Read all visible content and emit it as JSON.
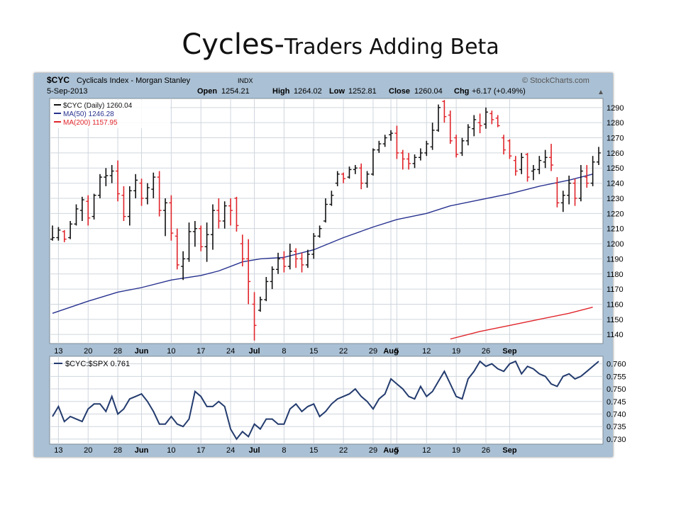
{
  "slide": {
    "title_main": "Cycles-",
    "title_rest": "Traders Adding Beta"
  },
  "header": {
    "symbol": "$CYC",
    "name": "Cyclicals Index - Morgan Stanley",
    "exchange": "INDX",
    "date": "5-Sep-2013",
    "watermark": "© StockCharts.com",
    "open_label": "Open",
    "open": "1254.21",
    "high_label": "High",
    "high": "1264.02",
    "low_label": "Low",
    "low": "1252.81",
    "close_label": "Close",
    "close": "1260.04",
    "chg_label": "Chg",
    "chg": "+6.17 (+0.49%)",
    "chg_arrow": "▲"
  },
  "colors": {
    "up": "#111111",
    "down": "#e0252b",
    "ma50": "#27318f",
    "ma200": "#e0252b",
    "ratio": "#233b6e",
    "grid": "#cfd6de",
    "panel_bg": "#aac0d4"
  },
  "chart_data": [
    {
      "type": "ohlc",
      "legend": [
        "$CYC (Daily) 1260.04",
        "MA(50) 1246.28",
        "MA(200) 1157.95"
      ],
      "y_ticks": [
        1290,
        1280,
        1270,
        1260,
        1250,
        1240,
        1230,
        1220,
        1210,
        1200,
        1190,
        1180,
        1170,
        1160,
        1150,
        1140
      ],
      "ylim": [
        1134,
        1296
      ],
      "x_tick_labels": [
        "13",
        "20",
        "28",
        "Jun",
        "10",
        "17",
        "24",
        "Jul",
        "8",
        "15",
        "22",
        "29",
        "Aug",
        "5",
        "12",
        "19",
        "26",
        "Sep"
      ],
      "x_tick_index": [
        1,
        6,
        11,
        15,
        20,
        25,
        30,
        34,
        39,
        44,
        49,
        54,
        57,
        58,
        63,
        68,
        73,
        77
      ],
      "bars": [
        [
          1203,
          1212,
          1202,
          1204
        ],
        [
          1204,
          1211,
          1202,
          1209
        ],
        [
          1208,
          1209,
          1201,
          1203
        ],
        [
          1204,
          1215,
          1203,
          1213
        ],
        [
          1213,
          1226,
          1212,
          1223
        ],
        [
          1222,
          1231,
          1215,
          1229
        ],
        [
          1228,
          1232,
          1212,
          1217
        ],
        [
          1218,
          1233,
          1216,
          1232
        ],
        [
          1232,
          1246,
          1230,
          1244
        ],
        [
          1244,
          1250,
          1238,
          1245
        ],
        [
          1245,
          1252,
          1240,
          1248
        ],
        [
          1248,
          1255,
          1228,
          1233
        ],
        [
          1232,
          1238,
          1215,
          1218
        ],
        [
          1218,
          1238,
          1212,
          1235
        ],
        [
          1235,
          1246,
          1230,
          1242
        ],
        [
          1240,
          1243,
          1225,
          1230
        ],
        [
          1230,
          1240,
          1226,
          1237
        ],
        [
          1236,
          1247,
          1230,
          1244
        ],
        [
          1244,
          1248,
          1218,
          1222
        ],
        [
          1222,
          1230,
          1205,
          1227
        ],
        [
          1227,
          1232,
          1202,
          1207
        ],
        [
          1205,
          1210,
          1183,
          1186
        ],
        [
          1185,
          1195,
          1176,
          1190
        ],
        [
          1190,
          1214,
          1188,
          1208
        ],
        [
          1208,
          1215,
          1198,
          1210
        ],
        [
          1210,
          1212,
          1195,
          1198
        ],
        [
          1198,
          1214,
          1188,
          1206
        ],
        [
          1206,
          1226,
          1196,
          1222
        ],
        [
          1222,
          1230,
          1210,
          1215
        ],
        [
          1215,
          1228,
          1210,
          1225
        ],
        [
          1225,
          1230,
          1212,
          1222
        ],
        [
          1230,
          1231,
          1208,
          1212
        ],
        [
          1200,
          1206,
          1185,
          1190
        ],
        [
          1190,
          1203,
          1160,
          1175
        ],
        [
          1160,
          1168,
          1136,
          1146
        ],
        [
          1156,
          1165,
          1155,
          1163
        ],
        [
          1163,
          1178,
          1162,
          1175
        ],
        [
          1175,
          1185,
          1170,
          1183
        ],
        [
          1183,
          1194,
          1180,
          1190
        ],
        [
          1190,
          1195,
          1181,
          1185
        ],
        [
          1185,
          1200,
          1183,
          1195
        ],
        [
          1195,
          1197,
          1184,
          1190
        ],
        [
          1190,
          1194,
          1181,
          1186
        ],
        [
          1186,
          1196,
          1184,
          1193
        ],
        [
          1193,
          1207,
          1190,
          1205
        ],
        [
          1205,
          1212,
          1204,
          1210
        ],
        [
          1215,
          1230,
          1214,
          1226
        ],
        [
          1226,
          1235,
          1225,
          1232
        ],
        [
          1240,
          1248,
          1238,
          1246
        ],
        [
          1246,
          1247,
          1240,
          1243
        ],
        [
          1244,
          1251,
          1243,
          1249
        ],
        [
          1249,
          1252,
          1246,
          1250
        ],
        [
          1250,
          1253,
          1236,
          1240
        ],
        [
          1240,
          1248,
          1237,
          1246
        ],
        [
          1246,
          1263,
          1245,
          1262
        ],
        [
          1262,
          1268,
          1260,
          1266
        ],
        [
          1266,
          1272,
          1264,
          1270
        ],
        [
          1272,
          1275,
          1268,
          1273
        ],
        [
          1273,
          1278,
          1256,
          1260
        ],
        [
          1260,
          1262,
          1249,
          1256
        ],
        [
          1256,
          1260,
          1249,
          1253
        ],
        [
          1253,
          1259,
          1250,
          1257
        ],
        [
          1257,
          1263,
          1255,
          1260
        ],
        [
          1260,
          1268,
          1258,
          1266
        ],
        [
          1264,
          1280,
          1262,
          1275
        ],
        [
          1275,
          1292,
          1274,
          1290
        ],
        [
          1294,
          1295,
          1280,
          1284
        ],
        [
          1285,
          1288,
          1266,
          1268
        ],
        [
          1270,
          1272,
          1257,
          1259
        ],
        [
          1260,
          1270,
          1258,
          1268
        ],
        [
          1268,
          1279,
          1265,
          1277
        ],
        [
          1276,
          1285,
          1271,
          1282
        ],
        [
          1280,
          1286,
          1273,
          1278
        ],
        [
          1279,
          1290,
          1276,
          1287
        ],
        [
          1286,
          1288,
          1279,
          1282
        ],
        [
          1283,
          1285,
          1277,
          1278
        ],
        [
          1270,
          1272,
          1259,
          1262
        ],
        [
          1268,
          1269,
          1256,
          1258
        ],
        [
          1255,
          1258,
          1245,
          1248
        ],
        [
          1249,
          1260,
          1246,
          1257
        ],
        [
          1259,
          1260,
          1241,
          1244
        ],
        [
          1248,
          1252,
          1242,
          1249
        ],
        [
          1249,
          1258,
          1246,
          1255
        ],
        [
          1254,
          1262,
          1250,
          1257
        ],
        [
          1257,
          1266,
          1248,
          1252
        ],
        [
          1240,
          1244,
          1224,
          1227
        ],
        [
          1227,
          1235,
          1221,
          1232
        ],
        [
          1232,
          1245,
          1226,
          1240
        ],
        [
          1240,
          1243,
          1225,
          1230
        ],
        [
          1230,
          1252,
          1228,
          1248
        ],
        [
          1244,
          1252,
          1237,
          1240
        ],
        [
          1240,
          1258,
          1238,
          1254
        ],
        [
          1254,
          1264,
          1252,
          1260
        ]
      ],
      "ma50": [
        [
          0,
          1154
        ],
        [
          6,
          1162
        ],
        [
          11,
          1168
        ],
        [
          15,
          1171
        ],
        [
          20,
          1176
        ],
        [
          25,
          1179
        ],
        [
          28,
          1182
        ],
        [
          32,
          1188
        ],
        [
          35,
          1190
        ],
        [
          39,
          1191
        ],
        [
          44,
          1196
        ],
        [
          49,
          1204
        ],
        [
          54,
          1211
        ],
        [
          58,
          1216
        ],
        [
          63,
          1220
        ],
        [
          67,
          1225
        ],
        [
          72,
          1229
        ],
        [
          77,
          1233
        ],
        [
          82,
          1238
        ],
        [
          87,
          1242
        ],
        [
          91,
          1246
        ]
      ],
      "ma200": [
        [
          67,
          1137
        ],
        [
          72,
          1142
        ],
        [
          77,
          1146
        ],
        [
          82,
          1150
        ],
        [
          87,
          1154
        ],
        [
          91,
          1158
        ]
      ]
    },
    {
      "type": "line",
      "legend": [
        "$CYC:$SPX 0.761"
      ],
      "y_ticks": [
        0.76,
        0.755,
        0.75,
        0.745,
        0.74,
        0.735,
        0.73
      ],
      "ylim": [
        0.728,
        0.763
      ],
      "values": [
        0.739,
        0.743,
        0.737,
        0.739,
        0.738,
        0.737,
        0.742,
        0.744,
        0.744,
        0.741,
        0.747,
        0.74,
        0.742,
        0.746,
        0.747,
        0.748,
        0.745,
        0.741,
        0.736,
        0.736,
        0.739,
        0.736,
        0.735,
        0.738,
        0.749,
        0.747,
        0.743,
        0.743,
        0.745,
        0.743,
        0.734,
        0.73,
        0.733,
        0.731,
        0.736,
        0.734,
        0.738,
        0.738,
        0.736,
        0.736,
        0.742,
        0.744,
        0.741,
        0.743,
        0.744,
        0.739,
        0.741,
        0.744,
        0.746,
        0.747,
        0.748,
        0.75,
        0.747,
        0.745,
        0.742,
        0.746,
        0.748,
        0.754,
        0.752,
        0.75,
        0.747,
        0.746,
        0.751,
        0.747,
        0.749,
        0.753,
        0.757,
        0.752,
        0.747,
        0.746,
        0.754,
        0.757,
        0.761,
        0.759,
        0.76,
        0.758,
        0.757,
        0.76,
        0.761,
        0.756,
        0.759,
        0.758,
        0.756,
        0.755,
        0.752,
        0.751,
        0.755,
        0.756,
        0.754,
        0.755,
        0.757,
        0.759,
        0.761
      ]
    }
  ]
}
